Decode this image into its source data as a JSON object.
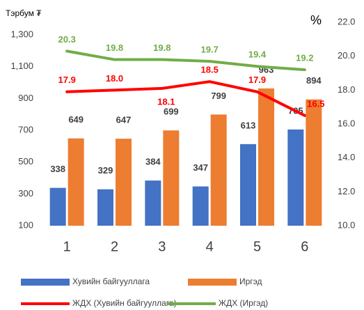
{
  "chart_data": {
    "type": "bar-line",
    "y_label": "Тэрбум ₮",
    "y2_label": "%",
    "categories": [
      "1",
      "2",
      "3",
      "4",
      "5",
      "6"
    ],
    "series": [
      {
        "name": "Хувийн байгууллага",
        "type": "bar",
        "color": "#4472c4",
        "values": [
          338,
          329,
          384,
          347,
          613,
          705
        ]
      },
      {
        "name": "Иргэд",
        "type": "bar",
        "color": "#ed7d31",
        "values": [
          649,
          647,
          699,
          799,
          963,
          894
        ]
      },
      {
        "name": "ЖДХ (Хувийн байгууллага)",
        "type": "line",
        "axis": "y2",
        "color": "#ff0000",
        "values": [
          17.9,
          18.0,
          18.1,
          18.5,
          17.9,
          16.5
        ],
        "value_labels": [
          "17.9",
          "18.0",
          "18.1",
          "18.5",
          "17.9",
          "16.5"
        ]
      },
      {
        "name": "ЖДХ (Иргэд)",
        "type": "line",
        "axis": "y2",
        "color": "#70ad47",
        "values": [
          20.3,
          19.8,
          19.8,
          19.7,
          19.4,
          19.2
        ]
      }
    ],
    "ylim": [
      100,
      1300
    ],
    "yticks": [
      100,
      300,
      500,
      700,
      900,
      {
        "value": 1100,
        "label": "1,100"
      },
      {
        "value": 1300,
        "label": "1,300"
      }
    ],
    "y2lim": [
      10,
      22
    ],
    "y2ticks": [
      {
        "value": 10,
        "label": "10.0"
      },
      {
        "value": 12,
        "label": "12.0"
      },
      {
        "value": 14,
        "label": "14.0"
      },
      {
        "value": 16,
        "label": "16.0"
      },
      {
        "value": 18,
        "label": "18.0"
      },
      {
        "value": 20,
        "label": "20.0"
      },
      {
        "value": 22,
        "label": "22.0"
      }
    ],
    "grid": false,
    "legend": "bottom"
  }
}
